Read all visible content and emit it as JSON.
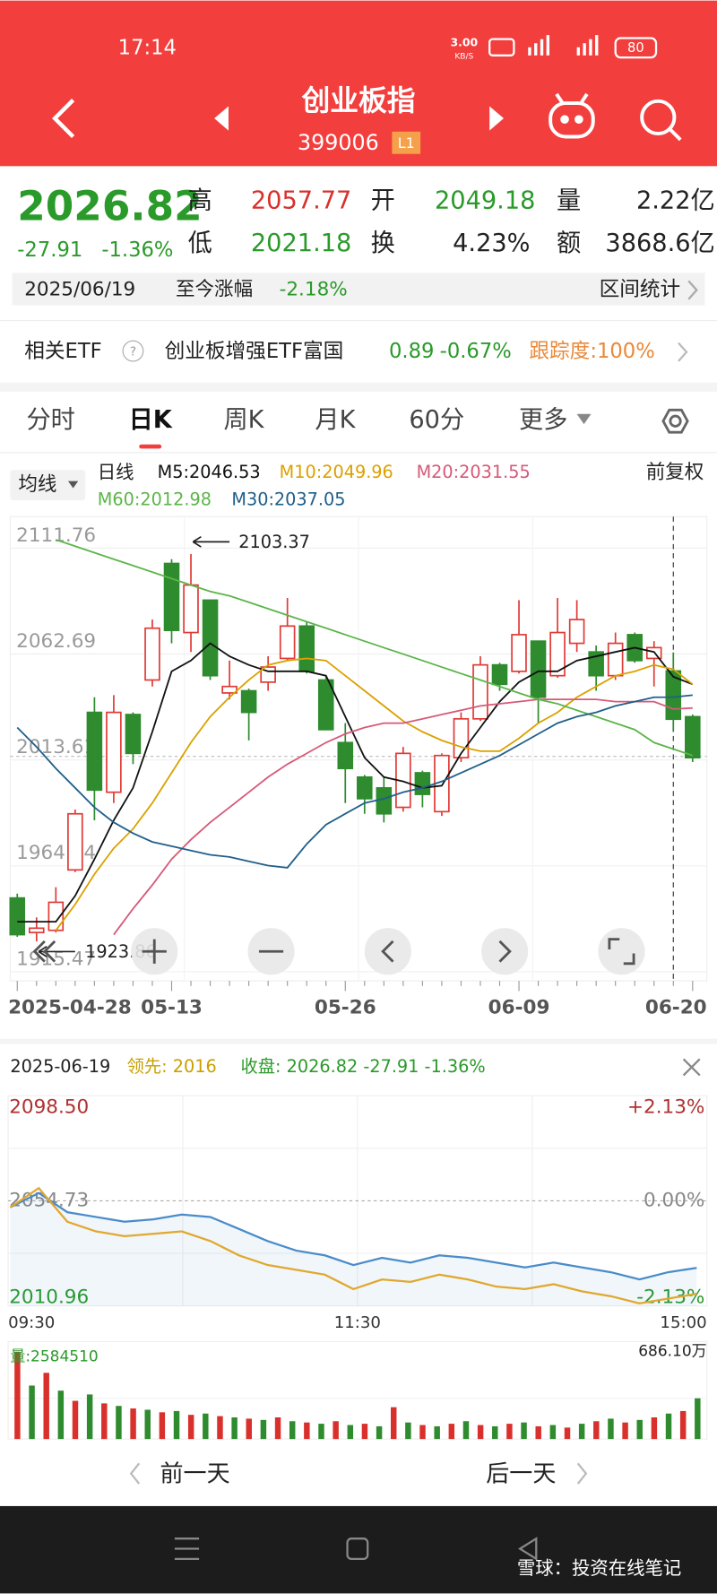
{
  "status_bar": {
    "time": "17:14",
    "speed": "3.00",
    "speed_unit": "KB/S",
    "battery": "80"
  },
  "header": {
    "title": "创业板指",
    "code": "399006",
    "level": "L1"
  },
  "quote": {
    "price": 2026.82,
    "change": -27.91,
    "change_pct": "-1.36%",
    "high_label": "高",
    "high": 2057.77,
    "open_label": "开",
    "open": 2049.18,
    "volume_label": "量",
    "volume": "2.22亿",
    "low_label": "低",
    "low": 2021.18,
    "turnover_label": "换",
    "turnover": "4.23%",
    "amount_label": "额",
    "amount": "3868.6亿"
  },
  "range_bar": {
    "date": "2025/06/19",
    "change_label": "至今涨幅",
    "change": "-2.18%",
    "stats": "区间统计"
  },
  "etf": {
    "label": "相关ETF",
    "name": "创业板增强ETF富国",
    "price": 0.89,
    "change": "-0.67%",
    "tracking": "跟踪度:100%"
  },
  "tabs": {
    "items": [
      "分时",
      "日K",
      "周K",
      "月K",
      "60分",
      "更多"
    ],
    "active": 1
  },
  "kline": {
    "ma_button": "均线",
    "period": "日线",
    "adjust": "前复权",
    "up_color": "#e03a36",
    "down_color": "#2e8b2e",
    "ylim": [
      1915.47,
      2111.76
    ],
    "yticks": [
      2111.76,
      2062.69,
      2013.61,
      1964.54,
      1915.47
    ],
    "categories": [
      "2025-04-28",
      null,
      null,
      null,
      null,
      null,
      null,
      null,
      "05-13",
      null,
      null,
      null,
      null,
      null,
      null,
      null,
      null,
      "05-26",
      null,
      null,
      null,
      null,
      null,
      null,
      null,
      null,
      "06-09",
      null,
      null,
      null,
      null,
      null,
      null,
      null,
      null,
      "06-20"
    ],
    "open": [
      1944,
      1928,
      1929,
      1957,
      2030,
      1993,
      2029,
      2045,
      2099,
      2067,
      2082,
      2039,
      2040,
      2044,
      2055,
      2070,
      2045,
      2016,
      2000,
      1995,
      1986,
      2002,
      1984,
      2009,
      2027,
      2052,
      2049,
      2063,
      2047,
      2062,
      2058,
      2047,
      2066,
      2055,
      2049.18,
      2028
    ],
    "close": [
      1927,
      1930,
      1942,
      1983,
      1994,
      2030,
      2011,
      2069,
      2068,
      2089,
      2047,
      2042,
      2030,
      2051,
      2070,
      2049,
      2022,
      2004,
      1990,
      1983,
      2011,
      1992,
      2010,
      2027,
      2052,
      2043,
      2066,
      2037,
      2067,
      2073,
      2047,
      2062,
      2054,
      2060,
      2026.82,
      2009
    ],
    "high": [
      1946,
      1935,
      1949,
      1985,
      2037,
      2038,
      2030,
      2073,
      2101,
      2103.37,
      2082,
      2054,
      2041,
      2056,
      2083,
      2072,
      2047,
      2025,
      2001,
      2000,
      2014,
      2003,
      2011,
      2030,
      2056,
      2053,
      2082,
      2063,
      2083,
      2082,
      2061,
      2067,
      2067,
      2063,
      2057.77,
      2029
    ],
    "low": [
      1926,
      1923.86,
      1928,
      1956,
      1980,
      1988,
      2006,
      2042,
      2062,
      2058,
      2045,
      2036,
      2017,
      2040,
      2054,
      2048,
      2022,
      1988,
      1983,
      1979,
      1984,
      1986,
      1982,
      2007,
      2026,
      2040,
      2048,
      2025,
      2046,
      2058,
      2040,
      2045,
      2053,
      2042,
      2021.18,
      2007
    ],
    "annotations": {
      "high": 2103.37,
      "low": 1923.86
    },
    "ma": [
      {
        "name": "M5:2046.53",
        "color": "#111111",
        "values": [
          1933,
          1933,
          1933,
          1945,
          1962,
          1980,
          1995,
          2021,
          2049,
          2054,
          2062,
          2056,
          2052,
          2049,
          2049,
          2049,
          2047,
          2028,
          2009,
          2000,
          1998,
          1995,
          1996,
          2011,
          2023,
          2035,
          2044,
          2049,
          2049,
          2054,
          2056,
          2058,
          2060,
          2058,
          2046.53,
          2043
        ]
      },
      {
        "name": "M10:2049.96",
        "color": "#dba100",
        "values": [
          null,
          null,
          1929,
          1941,
          1955,
          1967,
          1976,
          1988,
          2002,
          2016,
          2028,
          2037,
          2045,
          2052,
          2054,
          2055,
          2054,
          2047,
          2040,
          2033,
          2026,
          2021,
          2017,
          2014,
          2012,
          2012,
          2018,
          2025,
          2030,
          2037,
          2042,
          2047,
          2049,
          2052,
          2049.96,
          2043
        ]
      },
      {
        "name": "M20:2031.55",
        "color": "#d65a78",
        "values": [
          null,
          null,
          null,
          null,
          null,
          1927,
          1939,
          1950,
          1962,
          1971,
          1979,
          1986,
          1993,
          2000,
          2006,
          2011,
          2016,
          2020,
          2023,
          2025,
          2025,
          2027,
          2029,
          2031,
          2033,
          2034,
          2035,
          2036,
          2036,
          2036,
          2036,
          2035,
          2035,
          2035,
          2031.55,
          2032
        ]
      },
      {
        "name": "M60:2012.98",
        "color": "#5cb54a",
        "values": [
          null,
          null,
          2110,
          2107,
          2104,
          2101,
          2098,
          2095,
          2092,
          2089,
          2086,
          2084,
          2081,
          2078,
          2075,
          2072,
          2069,
          2066,
          2063,
          2060,
          2057,
          2054,
          2051,
          2048,
          2045,
          2042,
          2039,
          2036,
          2034,
          2031,
          2028,
          2025,
          2022,
          2016,
          2012.98,
          2010
        ]
      },
      {
        "name": "M30:2037.05",
        "color": "#1f5f8b",
        "values": [
          2023,
          2014,
          2004,
          1995,
          1986,
          1979,
          1974,
          1970,
          1968,
          1966,
          1964,
          1963,
          1961,
          1959,
          1958,
          1969,
          1978,
          1983,
          1988,
          1990,
          1993,
          1995,
          1998,
          2002,
          2006,
          2010,
          2015,
          2020,
          2025,
          2028,
          2030,
          2033,
          2035,
          2037,
          2037.05,
          2038
        ]
      }
    ]
  },
  "intraday": {
    "date": "2025-06-19",
    "leader": "领先: 2016",
    "close": "收盘: 2026.82 -27.91 -1.36%",
    "ylim": [
      2010.96,
      2098.5
    ],
    "yticks": [
      {
        "value": 2098.5,
        "label": "2098.50"
      },
      2054.73,
      2010.96
    ],
    "y2lim": [
      -2.13,
      2.13
    ],
    "y2ticks": [
      {
        "value": 2.13,
        "label": "+2.13%"
      },
      {
        "value": 0,
        "label": "0.00%"
      },
      {
        "value": -2.13,
        "label": "-2.13%"
      }
    ],
    "xticks": [
      "09:30",
      "11:30",
      "15:00"
    ],
    "series": [
      {
        "color": "#4a8cc9",
        "values": [
          2052,
          2058,
          2050,
          2048,
          2046,
          2047,
          2049,
          2048,
          2043,
          2038,
          2034,
          2032,
          2028,
          2031,
          2029,
          2032,
          2031,
          2029,
          2027,
          2029,
          2027,
          2025,
          2022,
          2025,
          2026.82
        ]
      },
      {
        "color": "#e0a82e",
        "values": [
          2052,
          2060,
          2046,
          2042,
          2040,
          2041,
          2042,
          2038,
          2032,
          2028,
          2026,
          2024,
          2018,
          2022,
          2021,
          2024,
          2022,
          2019,
          2018,
          2020,
          2017,
          2015,
          2012,
          2014,
          2016
        ]
      }
    ]
  },
  "volume": {
    "label": "量:2584510",
    "max_label": "686.10万",
    "ylim": [
      0,
      686.1
    ],
    "colors": [
      "#d9302c",
      "#2e8b2e"
    ],
    "values": [
      686.1,
      420,
      520,
      380,
      300,
      350,
      280,
      260,
      240,
      230,
      210,
      220,
      190,
      200,
      180,
      170,
      160,
      150,
      170,
      140,
      130,
      120,
      140,
      110,
      120,
      100,
      250,
      130,
      110,
      100,
      120,
      140,
      110,
      100,
      120,
      130,
      100,
      110,
      90,
      120,
      140,
      160,
      130,
      150,
      170,
      200,
      220,
      320
    ]
  },
  "footer": {
    "prev": "前一天",
    "next": "后一天"
  },
  "watermark": "雪球：投资在线笔记"
}
